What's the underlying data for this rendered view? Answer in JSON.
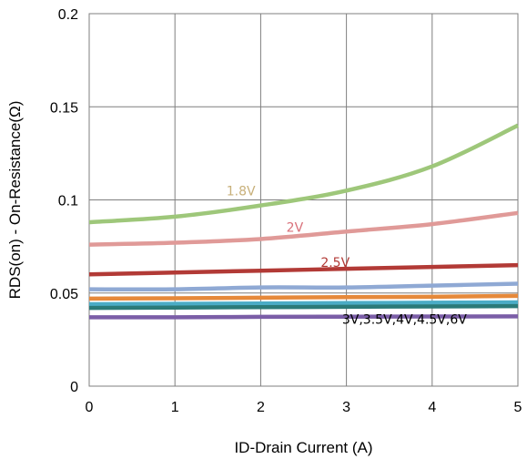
{
  "chart_data": {
    "type": "line",
    "title": "",
    "xlabel": "ID-Drain Current (A)",
    "ylabel": "RDS(on) - On-Resistance(Ω)",
    "xlim": [
      0,
      5
    ],
    "ylim": [
      0,
      0.2
    ],
    "x_ticks": [
      "0",
      "1",
      "2",
      "3",
      "4",
      "5"
    ],
    "y_ticks": [
      "0",
      "0.05",
      "0.1",
      "0.15",
      "0.2"
    ],
    "grid": true,
    "legend": "none",
    "series": [
      {
        "color": "#9ec77a",
        "x": [
          0,
          1,
          2,
          3,
          4,
          5
        ],
        "y": [
          0.088,
          0.091,
          0.097,
          0.105,
          0.118,
          0.14
        ]
      },
      {
        "color": "#e09a98",
        "x": [
          0,
          1,
          2,
          3,
          4,
          5
        ],
        "y": [
          0.076,
          0.077,
          0.079,
          0.083,
          0.087,
          0.093
        ]
      },
      {
        "color": "#b23a36",
        "x": [
          0,
          1,
          2,
          3,
          4,
          5
        ],
        "y": [
          0.06,
          0.061,
          0.062,
          0.063,
          0.064,
          0.065
        ]
      },
      {
        "color": "#8fa9d4",
        "x": [
          0,
          1,
          2,
          3,
          4,
          5
        ],
        "y": [
          0.052,
          0.052,
          0.053,
          0.053,
          0.054,
          0.055
        ]
      },
      {
        "color": "#e6893a",
        "x": [
          0,
          1,
          2,
          3,
          4,
          5
        ],
        "y": [
          0.047,
          0.0472,
          0.0475,
          0.0478,
          0.048,
          0.0485
        ]
      },
      {
        "color": "#4bacc6",
        "x": [
          0,
          1,
          2,
          3,
          4,
          5
        ],
        "y": [
          0.044,
          0.0442,
          0.0444,
          0.0446,
          0.0448,
          0.045
        ]
      },
      {
        "color": "#2b7a78",
        "x": [
          0,
          1,
          2,
          3,
          4,
          5
        ],
        "y": [
          0.042,
          0.0422,
          0.0424,
          0.0426,
          0.0428,
          0.043
        ]
      },
      {
        "color": "#7b5ea7",
        "x": [
          0,
          1,
          2,
          3,
          4,
          5
        ],
        "y": [
          0.037,
          0.037,
          0.0372,
          0.0373,
          0.0374,
          0.0375
        ]
      }
    ],
    "annotations": [
      {
        "text": "1.8V",
        "x": 1.6,
        "y": 0.1025,
        "color": "#c8b07a"
      },
      {
        "text": "2V",
        "x": 2.3,
        "y": 0.083,
        "color": "#d9707a"
      },
      {
        "text": "2.5V",
        "x": 2.7,
        "y": 0.064,
        "color": "#b23a36"
      },
      {
        "text": "3V,3.5V,4V,4.5V,6V",
        "x": 2.95,
        "y": 0.0335,
        "color": "#000000"
      }
    ]
  }
}
